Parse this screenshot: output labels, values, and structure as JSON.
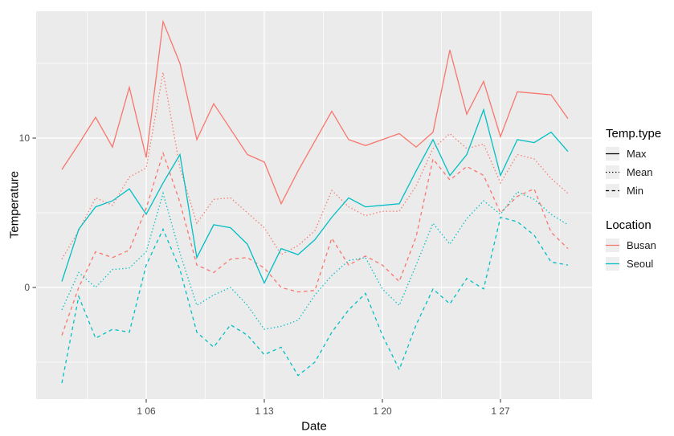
{
  "axes": {
    "x_title": "Date",
    "y_title": "Temperature"
  },
  "legend": {
    "temp_type_title": "Temp.type",
    "temp_items": [
      "Max",
      "Mean",
      "Min"
    ],
    "location_title": "Location",
    "location_items": [
      {
        "label": "Busan",
        "color": "#F8766D"
      },
      {
        "label": "Seoul",
        "color": "#00BFC4"
      }
    ]
  },
  "chart_data": {
    "type": "line",
    "title": "",
    "xlabel": "Date",
    "ylabel": "Temperature",
    "x_unit": "day of January",
    "days": [
      1,
      2,
      3,
      4,
      5,
      6,
      7,
      8,
      9,
      10,
      11,
      12,
      13,
      14,
      15,
      16,
      17,
      18,
      19,
      20,
      21,
      22,
      23,
      24,
      25,
      26,
      27,
      28,
      29,
      30,
      31
    ],
    "x_ticks": [
      {
        "day": 6,
        "label": "1 06"
      },
      {
        "day": 13,
        "label": "1 13"
      },
      {
        "day": 20,
        "label": "1 20"
      },
      {
        "day": 27,
        "label": "1 27"
      }
    ],
    "x_minor_days": [
      2.5,
      9.5,
      16.5,
      23.5,
      30.5
    ],
    "y_ticks": [
      {
        "v": 0,
        "label": "0"
      },
      {
        "v": 10,
        "label": "10"
      }
    ],
    "y_minor": [
      -5,
      5,
      15
    ],
    "ylim": [
      -7.5,
      18.5
    ],
    "grid": "on",
    "legend_position": "right",
    "panel_bg": "#EBEBEB",
    "series": [
      {
        "location": "Busan",
        "temp_type": "Max",
        "linetype": "solid",
        "color": "#F8766D",
        "values": [
          7.9,
          9.6,
          11.4,
          9.4,
          13.4,
          8.7,
          17.8,
          15.0,
          9.9,
          12.3,
          10.6,
          8.9,
          8.4,
          5.6,
          7.8,
          9.8,
          11.8,
          9.9,
          9.5,
          9.9,
          10.3,
          9.4,
          10.4,
          15.9,
          11.6,
          13.8,
          10.1,
          13.1,
          13.0,
          12.9,
          11.3
        ]
      },
      {
        "location": "Busan",
        "temp_type": "Mean",
        "linetype": "dotted",
        "color": "#F8766D",
        "values": [
          1.9,
          3.8,
          6.0,
          5.5,
          7.4,
          8.0,
          14.4,
          8.0,
          4.3,
          5.9,
          6.0,
          5.0,
          4.0,
          2.2,
          2.8,
          3.8,
          6.5,
          5.4,
          4.8,
          5.1,
          5.1,
          6.8,
          9.3,
          10.3,
          9.3,
          9.6,
          7.0,
          8.9,
          8.6,
          7.3,
          6.3
        ]
      },
      {
        "location": "Busan",
        "temp_type": "Min",
        "linetype": "dashed",
        "color": "#F8766D",
        "values": [
          -3.2,
          0.0,
          2.4,
          2.0,
          2.5,
          5.3,
          9.0,
          5.7,
          1.5,
          1.0,
          1.9,
          2.0,
          1.3,
          0.0,
          -0.3,
          -0.2,
          3.3,
          1.5,
          2.1,
          1.5,
          0.4,
          3.4,
          8.6,
          7.2,
          8.1,
          7.5,
          5.0,
          6.1,
          6.6,
          3.7,
          2.6
        ]
      },
      {
        "location": "Seoul",
        "temp_type": "Max",
        "linetype": "solid",
        "color": "#00BFC4",
        "values": [
          0.4,
          3.9,
          5.4,
          5.8,
          6.6,
          4.9,
          7.0,
          8.9,
          2.0,
          4.2,
          4.0,
          2.9,
          0.3,
          2.6,
          2.2,
          3.2,
          4.7,
          6.0,
          5.4,
          5.5,
          5.6,
          7.8,
          9.9,
          7.5,
          8.9,
          11.9,
          7.5,
          9.9,
          9.7,
          10.4,
          9.1
        ]
      },
      {
        "location": "Seoul",
        "temp_type": "Mean",
        "linetype": "dotted",
        "color": "#00BFC4",
        "values": [
          -1.5,
          1.0,
          0.0,
          1.2,
          1.3,
          2.4,
          6.3,
          2.3,
          -1.2,
          -0.5,
          0.0,
          -1.2,
          -2.8,
          -2.6,
          -2.2,
          -0.5,
          0.8,
          1.8,
          2.0,
          -0.1,
          -1.2,
          1.5,
          4.3,
          2.9,
          4.6,
          5.8,
          4.9,
          6.4,
          5.9,
          4.9,
          4.2
        ]
      },
      {
        "location": "Seoul",
        "temp_type": "Min",
        "linetype": "dashed",
        "color": "#00BFC4",
        "values": [
          -6.4,
          -0.6,
          -3.4,
          -2.8,
          -3.0,
          1.5,
          3.9,
          1.2,
          -3.0,
          -4.0,
          -2.5,
          -3.2,
          -4.5,
          -4.0,
          -5.9,
          -5.0,
          -3.0,
          -1.5,
          -0.4,
          -3.2,
          -5.5,
          -2.5,
          -0.1,
          -1.1,
          0.6,
          -0.1,
          4.7,
          4.4,
          3.5,
          1.7,
          1.5
        ]
      }
    ]
  }
}
